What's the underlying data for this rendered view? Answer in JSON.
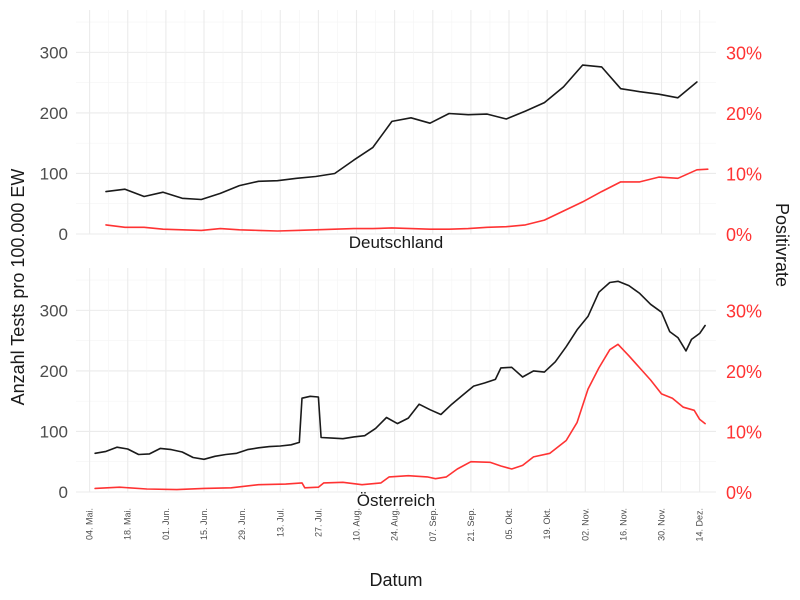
{
  "chart_data": {
    "type": "line",
    "ylabel_left": "Anzahl Tests pro 100.000 EW",
    "ylabel_right": "Positivrate",
    "xlabel": "Datum",
    "colors": {
      "tests": "#1a1a1a",
      "positivity": "#ff3333",
      "right_axis": "#ff3333"
    },
    "ylim_left": [
      0,
      370
    ],
    "ylim_right_percent": [
      0,
      37
    ],
    "y_ticks_left": [
      0,
      100,
      200,
      300
    ],
    "y_ticks_right": [
      0,
      10,
      20,
      30
    ],
    "y_ticks_right_labels": [
      "0%",
      "10%",
      "20%",
      "30%"
    ],
    "grid": true,
    "x_ticks": [
      {
        "date": "2020-05-04",
        "label": "04. Mai."
      },
      {
        "date": "2020-05-18",
        "label": "18. Mai."
      },
      {
        "date": "2020-06-01",
        "label": "01. Jun."
      },
      {
        "date": "2020-06-15",
        "label": "15. Jun."
      },
      {
        "date": "2020-06-29",
        "label": "29. Jun."
      },
      {
        "date": "2020-07-13",
        "label": "13. Jul."
      },
      {
        "date": "2020-07-27",
        "label": "27. Jul."
      },
      {
        "date": "2020-08-10",
        "label": "10. Aug."
      },
      {
        "date": "2020-08-24",
        "label": "24. Aug."
      },
      {
        "date": "2020-09-07",
        "label": "07. Sep."
      },
      {
        "date": "2020-09-21",
        "label": "21. Sep."
      },
      {
        "date": "2020-10-05",
        "label": "05. Okt."
      },
      {
        "date": "2020-10-19",
        "label": "19. Okt."
      },
      {
        "date": "2020-11-02",
        "label": "02. Nov."
      },
      {
        "date": "2020-11-16",
        "label": "16. Nov."
      },
      {
        "date": "2020-11-30",
        "label": "30. Nov."
      },
      {
        "date": "2020-12-14",
        "label": "14. Dez."
      }
    ],
    "x_range": [
      "2020-04-29",
      "2020-12-20"
    ],
    "panels": [
      {
        "label": "Deutschland",
        "series": [
          {
            "key": "tests",
            "points": [
              [
                "2020-05-10",
                70
              ],
              [
                "2020-05-17",
                74
              ],
              [
                "2020-05-24",
                62
              ],
              [
                "2020-05-31",
                69
              ],
              [
                "2020-06-07",
                59
              ],
              [
                "2020-06-14",
                57
              ],
              [
                "2020-06-21",
                67
              ],
              [
                "2020-06-28",
                80
              ],
              [
                "2020-07-05",
                87
              ],
              [
                "2020-07-12",
                88
              ],
              [
                "2020-07-19",
                92
              ],
              [
                "2020-07-26",
                95
              ],
              [
                "2020-08-02",
                100
              ],
              [
                "2020-08-09",
                122
              ],
              [
                "2020-08-16",
                143
              ],
              [
                "2020-08-23",
                186
              ],
              [
                "2020-08-30",
                192
              ],
              [
                "2020-09-06",
                183
              ],
              [
                "2020-09-13",
                199
              ],
              [
                "2020-09-20",
                197
              ],
              [
                "2020-09-27",
                198
              ],
              [
                "2020-10-04",
                190
              ],
              [
                "2020-10-11",
                203
              ],
              [
                "2020-10-18",
                217
              ],
              [
                "2020-10-25",
                243
              ],
              [
                "2020-11-01",
                279
              ],
              [
                "2020-11-08",
                276
              ],
              [
                "2020-11-15",
                240
              ],
              [
                "2020-11-22",
                235
              ],
              [
                "2020-11-29",
                231
              ],
              [
                "2020-12-06",
                225
              ],
              [
                "2020-12-13",
                251
              ]
            ]
          },
          {
            "key": "positivity",
            "points": [
              [
                "2020-05-10",
                1.5
              ],
              [
                "2020-05-17",
                1.1
              ],
              [
                "2020-05-24",
                1.1
              ],
              [
                "2020-05-31",
                0.8
              ],
              [
                "2020-06-07",
                0.7
              ],
              [
                "2020-06-14",
                0.6
              ],
              [
                "2020-06-21",
                0.9
              ],
              [
                "2020-06-28",
                0.7
              ],
              [
                "2020-07-05",
                0.6
              ],
              [
                "2020-07-12",
                0.5
              ],
              [
                "2020-07-19",
                0.6
              ],
              [
                "2020-07-26",
                0.7
              ],
              [
                "2020-08-02",
                0.8
              ],
              [
                "2020-08-09",
                0.9
              ],
              [
                "2020-08-16",
                0.9
              ],
              [
                "2020-08-23",
                1.0
              ],
              [
                "2020-08-30",
                0.9
              ],
              [
                "2020-09-06",
                0.8
              ],
              [
                "2020-09-13",
                0.8
              ],
              [
                "2020-09-20",
                0.9
              ],
              [
                "2020-09-27",
                1.1
              ],
              [
                "2020-10-04",
                1.2
              ],
              [
                "2020-10-11",
                1.5
              ],
              [
                "2020-10-18",
                2.3
              ],
              [
                "2020-10-25",
                3.8
              ],
              [
                "2020-11-01",
                5.3
              ],
              [
                "2020-11-08",
                7.0
              ],
              [
                "2020-11-15",
                8.6
              ],
              [
                "2020-11-22",
                8.6
              ],
              [
                "2020-11-29",
                9.4
              ],
              [
                "2020-12-06",
                9.2
              ],
              [
                "2020-12-13",
                10.6
              ],
              [
                "2020-12-17",
                10.7
              ]
            ]
          }
        ]
      },
      {
        "label": "Österreich",
        "series": [
          {
            "key": "tests",
            "points": [
              [
                "2020-05-06",
                64
              ],
              [
                "2020-05-10",
                67
              ],
              [
                "2020-05-14",
                74
              ],
              [
                "2020-05-18",
                71
              ],
              [
                "2020-05-22",
                62
              ],
              [
                "2020-05-26",
                63
              ],
              [
                "2020-05-30",
                72
              ],
              [
                "2020-06-03",
                70
              ],
              [
                "2020-06-07",
                66
              ],
              [
                "2020-06-11",
                57
              ],
              [
                "2020-06-15",
                54
              ],
              [
                "2020-06-19",
                59
              ],
              [
                "2020-06-23",
                62
              ],
              [
                "2020-06-27",
                64
              ],
              [
                "2020-07-01",
                70
              ],
              [
                "2020-07-05",
                73
              ],
              [
                "2020-07-09",
                75
              ],
              [
                "2020-07-13",
                76
              ],
              [
                "2020-07-17",
                78
              ],
              [
                "2020-07-20",
                82
              ],
              [
                "2020-07-21",
                155
              ],
              [
                "2020-07-24",
                158
              ],
              [
                "2020-07-27",
                157
              ],
              [
                "2020-07-28",
                90
              ],
              [
                "2020-08-01",
                89
              ],
              [
                "2020-08-05",
                88
              ],
              [
                "2020-08-09",
                91
              ],
              [
                "2020-08-13",
                93
              ],
              [
                "2020-08-17",
                105
              ],
              [
                "2020-08-21",
                123
              ],
              [
                "2020-08-25",
                113
              ],
              [
                "2020-08-29",
                122
              ],
              [
                "2020-09-02",
                145
              ],
              [
                "2020-09-06",
                136
              ],
              [
                "2020-09-10",
                128
              ],
              [
                "2020-09-14",
                145
              ],
              [
                "2020-09-18",
                160
              ],
              [
                "2020-09-22",
                175
              ],
              [
                "2020-09-26",
                180
              ],
              [
                "2020-09-30",
                186
              ],
              [
                "2020-10-02",
                205
              ],
              [
                "2020-10-06",
                206
              ],
              [
                "2020-10-10",
                190
              ],
              [
                "2020-10-14",
                200
              ],
              [
                "2020-10-18",
                198
              ],
              [
                "2020-10-22",
                215
              ],
              [
                "2020-10-26",
                240
              ],
              [
                "2020-10-30",
                268
              ],
              [
                "2020-11-03",
                290
              ],
              [
                "2020-11-07",
                330
              ],
              [
                "2020-11-11",
                346
              ],
              [
                "2020-11-14",
                348
              ],
              [
                "2020-11-18",
                341
              ],
              [
                "2020-11-22",
                328
              ],
              [
                "2020-11-26",
                310
              ],
              [
                "2020-11-30",
                297
              ],
              [
                "2020-12-03",
                265
              ],
              [
                "2020-12-06",
                255
              ],
              [
                "2020-12-09",
                233
              ],
              [
                "2020-12-11",
                252
              ],
              [
                "2020-12-14",
                262
              ],
              [
                "2020-12-16",
                275
              ]
            ]
          },
          {
            "key": "positivity",
            "points": [
              [
                "2020-05-06",
                0.6
              ],
              [
                "2020-05-15",
                0.8
              ],
              [
                "2020-05-25",
                0.5
              ],
              [
                "2020-06-05",
                0.4
              ],
              [
                "2020-06-15",
                0.6
              ],
              [
                "2020-06-25",
                0.7
              ],
              [
                "2020-07-05",
                1.2
              ],
              [
                "2020-07-15",
                1.3
              ],
              [
                "2020-07-21",
                1.5
              ],
              [
                "2020-07-22",
                0.7
              ],
              [
                "2020-07-27",
                0.8
              ],
              [
                "2020-07-29",
                1.5
              ],
              [
                "2020-08-05",
                1.6
              ],
              [
                "2020-08-12",
                1.2
              ],
              [
                "2020-08-19",
                1.5
              ],
              [
                "2020-08-22",
                2.5
              ],
              [
                "2020-08-29",
                2.7
              ],
              [
                "2020-09-05",
                2.5
              ],
              [
                "2020-09-08",
                2.2
              ],
              [
                "2020-09-12",
                2.5
              ],
              [
                "2020-09-16",
                3.8
              ],
              [
                "2020-09-21",
                5.0
              ],
              [
                "2020-09-28",
                4.9
              ],
              [
                "2020-10-02",
                4.3
              ],
              [
                "2020-10-06",
                3.8
              ],
              [
                "2020-10-10",
                4.4
              ],
              [
                "2020-10-14",
                5.8
              ],
              [
                "2020-10-20",
                6.4
              ],
              [
                "2020-10-26",
                8.5
              ],
              [
                "2020-10-30",
                11.5
              ],
              [
                "2020-11-03",
                17.0
              ],
              [
                "2020-11-07",
                20.5
              ],
              [
                "2020-11-11",
                23.5
              ],
              [
                "2020-11-14",
                24.4
              ],
              [
                "2020-11-18",
                22.5
              ],
              [
                "2020-11-22",
                20.5
              ],
              [
                "2020-11-26",
                18.5
              ],
              [
                "2020-11-30",
                16.2
              ],
              [
                "2020-12-04",
                15.5
              ],
              [
                "2020-12-08",
                14.0
              ],
              [
                "2020-12-12",
                13.5
              ],
              [
                "2020-12-14",
                12.0
              ],
              [
                "2020-12-16",
                11.3
              ]
            ]
          }
        ]
      }
    ]
  }
}
